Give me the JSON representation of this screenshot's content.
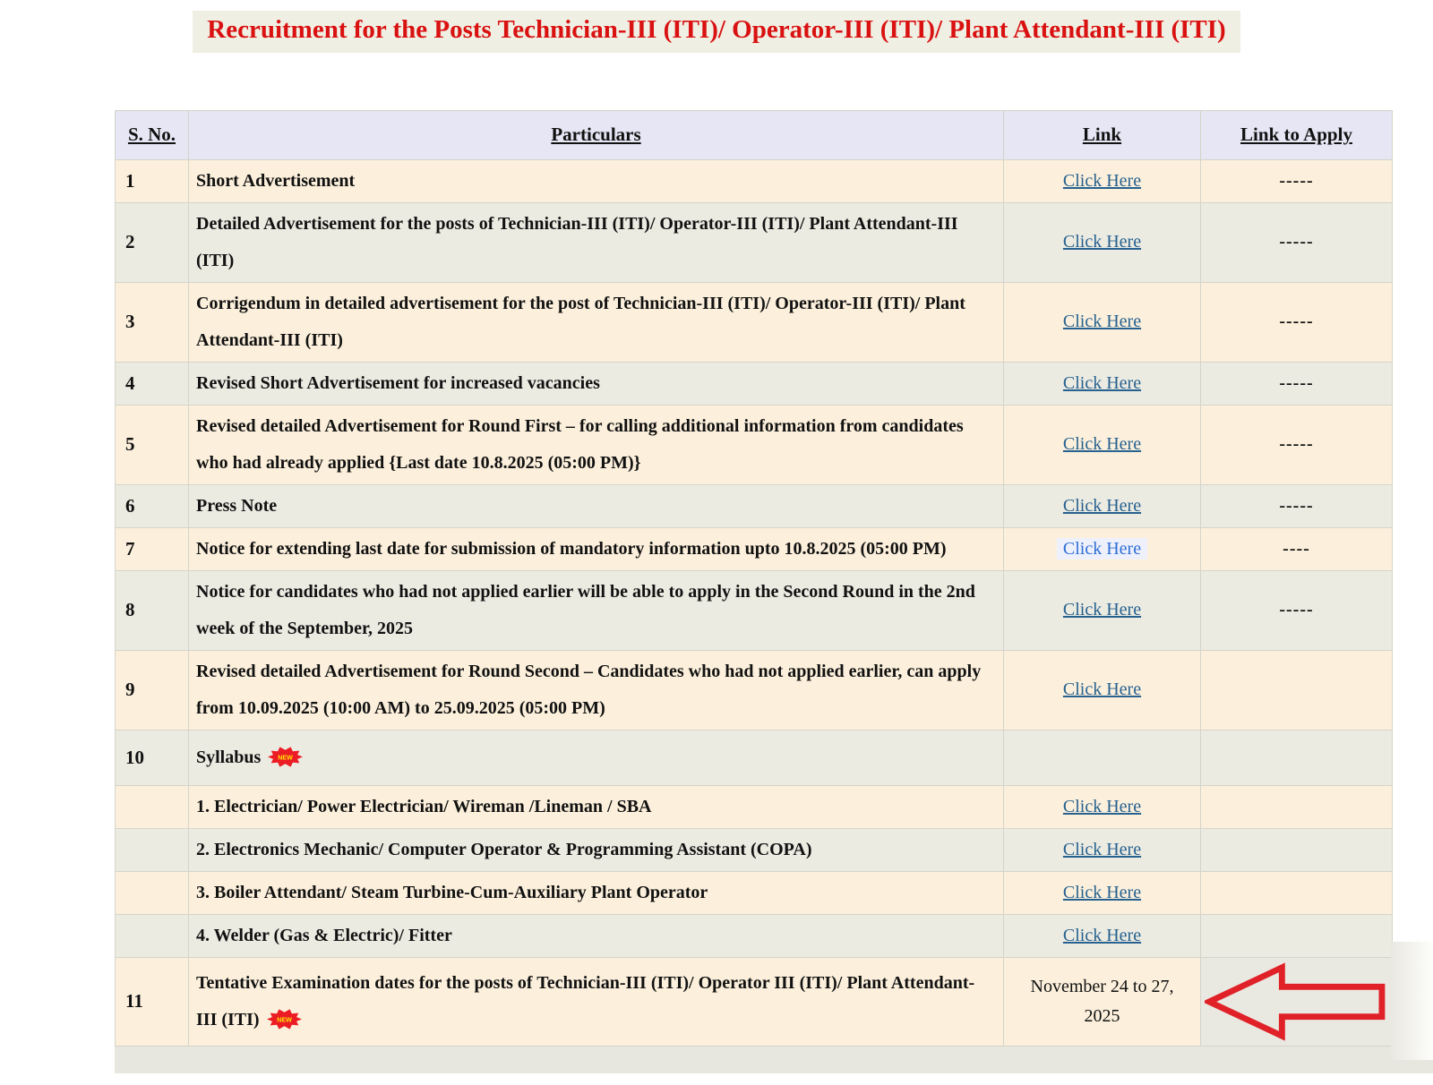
{
  "page": {
    "title": "Recruitment for the Posts Technician-III (ITI)/ Operator-III (ITI)/ Plant Attendant-III (ITI)"
  },
  "colors": {
    "title_red": "#D91111",
    "title_bg": "#F0EFE3",
    "header_bg": "#E6E6F4",
    "row_cream": "#FCF0DC",
    "row_gray": "#ECEBE2",
    "link_blue": "#26618F",
    "link_bright_blue": "#2E6FD6",
    "badge_red": "#EC1C24",
    "badge_text_yellow": "#FFE400",
    "arrow_red": "#E02128"
  },
  "icons": {
    "new_badge": "new-starburst-icon",
    "arrow": "red-left-arrow-icon"
  },
  "table": {
    "headers": [
      "S. No.",
      "Particulars",
      "Link",
      "Link to Apply"
    ],
    "rows": [
      {
        "sno": "1",
        "particulars": "Short Advertisement",
        "badge_new": false,
        "link": {
          "type": "link",
          "label": "Click Here"
        },
        "apply": "-----",
        "shade": "cream",
        "arrow": false
      },
      {
        "sno": "2",
        "particulars": "Detailed Advertisement for the posts of Technician-III (ITI)/ Operator-III (ITI)/ Plant Attendant-III (ITI)",
        "badge_new": false,
        "link": {
          "type": "link",
          "label": "Click Here"
        },
        "apply": "-----",
        "shade": "gray",
        "arrow": false
      },
      {
        "sno": "3",
        "particulars": "Corrigendum in detailed advertisement for the post of Technician-III (ITI)/ Operator-III (ITI)/ Plant Attendant-III (ITI)",
        "badge_new": false,
        "link": {
          "type": "link",
          "label": "Click Here"
        },
        "apply": "-----",
        "shade": "cream",
        "arrow": false
      },
      {
        "sno": "4",
        "particulars": "Revised Short Advertisement for increased vacancies",
        "badge_new": false,
        "link": {
          "type": "link",
          "label": "Click Here"
        },
        "apply": "-----",
        "shade": "gray",
        "arrow": false
      },
      {
        "sno": "5",
        "particulars": "Revised detailed Advertisement for Round First – for calling additional information from candidates who had already applied {Last date 10.8.2025 (05:00 PM)}",
        "badge_new": false,
        "link": {
          "type": "link",
          "label": "Click Here"
        },
        "apply": "-----",
        "shade": "cream",
        "arrow": false
      },
      {
        "sno": "6",
        "particulars": "Press Note",
        "badge_new": false,
        "link": {
          "type": "link",
          "label": "Click Here"
        },
        "apply": "-----",
        "shade": "gray",
        "arrow": false
      },
      {
        "sno": "7",
        "particulars": "Notice for extending last date for submission of mandatory information upto 10.8.2025 (05:00 PM)",
        "badge_new": false,
        "link": {
          "type": "link_highlight",
          "label": "Click Here"
        },
        "apply": "----",
        "shade": "cream",
        "arrow": false
      },
      {
        "sno": "8",
        "particulars": "Notice for candidates who had not applied earlier will be able to apply in the Second Round in the 2nd week of the September, 2025",
        "badge_new": false,
        "link": {
          "type": "link",
          "label": "Click Here"
        },
        "apply": "-----",
        "shade": "gray",
        "arrow": false
      },
      {
        "sno": "9",
        "particulars": "Revised detailed Advertisement for Round Second – Candidates who had not applied earlier, can apply from 10.09.2025 (10:00 AM) to 25.09.2025 (05:00 PM)",
        "badge_new": false,
        "link": {
          "type": "link",
          "label": "Click Here"
        },
        "apply": "",
        "shade": "cream",
        "arrow": false
      },
      {
        "sno": "10",
        "particulars": "Syllabus",
        "badge_new": true,
        "link": {
          "type": "none",
          "label": ""
        },
        "apply": "",
        "shade": "gray",
        "arrow": false,
        "tall": true
      },
      {
        "sno": "",
        "particulars": "1. Electrician/ Power Electrician/ Wireman /Lineman / SBA",
        "badge_new": false,
        "link": {
          "type": "link",
          "label": "Click Here"
        },
        "apply": "",
        "shade": "cream",
        "arrow": false
      },
      {
        "sno": "",
        "particulars": "2. Electronics Mechanic/ Computer Operator & Programming Assistant (COPA)",
        "badge_new": false,
        "link": {
          "type": "link",
          "label": "Click Here"
        },
        "apply": "",
        "shade": "gray",
        "arrow": false
      },
      {
        "sno": "",
        "particulars": "3. Boiler Attendant/ Steam Turbine-Cum-Auxiliary Plant Operator",
        "badge_new": false,
        "link": {
          "type": "link",
          "label": "Click Here"
        },
        "apply": "",
        "shade": "cream",
        "arrow": false
      },
      {
        "sno": "",
        "particulars": "4. Welder (Gas & Electric)/ Fitter",
        "badge_new": false,
        "link": {
          "type": "link",
          "label": "Click Here"
        },
        "apply": "",
        "shade": "gray",
        "arrow": false
      },
      {
        "sno": "11",
        "particulars": "Tentative Examination dates for the posts of Technician-III (ITI)/ Operator III (ITI)/ Plant Attendant-III (ITI)",
        "badge_new": true,
        "link": {
          "type": "text",
          "label": "November 24 to 27, 2025"
        },
        "apply": "",
        "shade": "cream",
        "apply_shade": "gray",
        "arrow": true
      }
    ]
  },
  "badge": {
    "label": "NEW"
  }
}
